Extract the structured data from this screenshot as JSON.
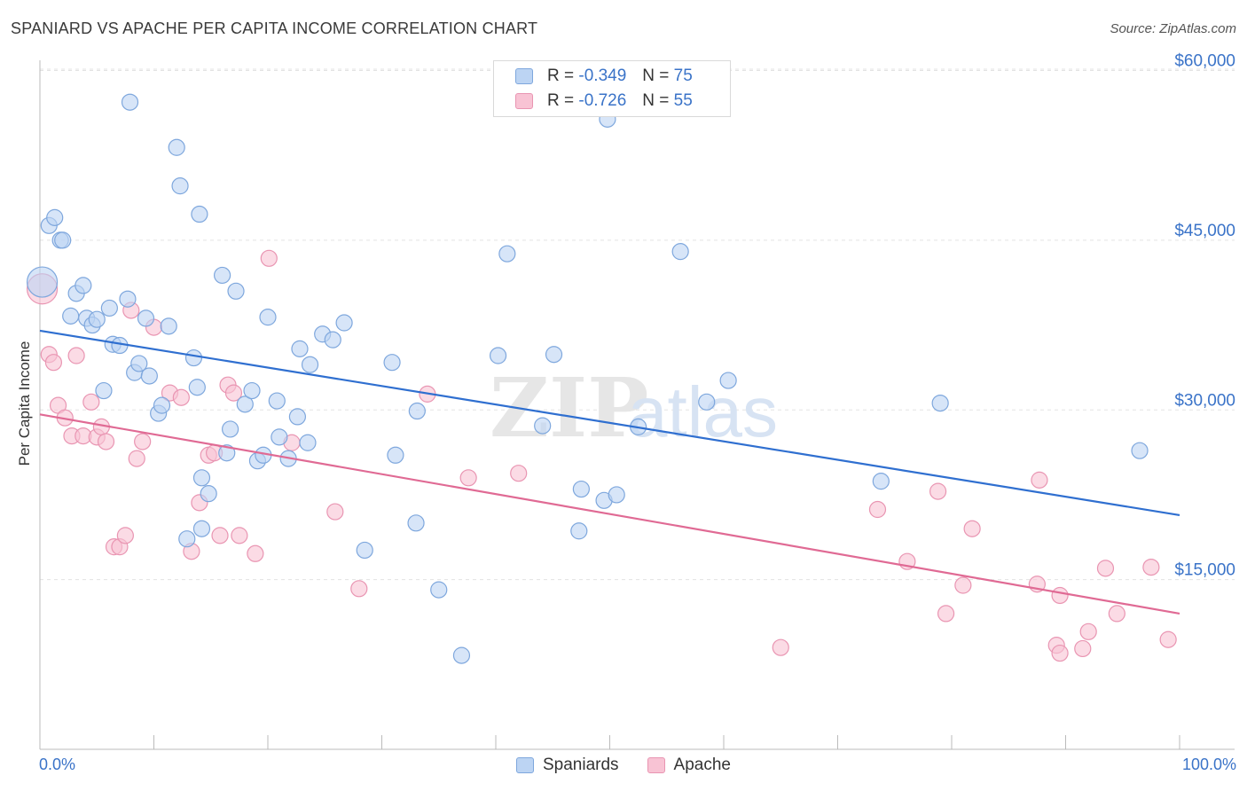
{
  "header": {
    "title": "SPANIARD VS APACHE PER CAPITA INCOME CORRELATION CHART",
    "source": "Source: ZipAtlas.com"
  },
  "watermark": {
    "zip": "ZIP",
    "atlas": "atlas"
  },
  "legend_top": [
    {
      "r_label": "R =",
      "r_value": "-0.349",
      "n_label": "N =",
      "n_value": "75"
    },
    {
      "r_label": "R =",
      "r_value": "-0.726",
      "n_label": "N =",
      "n_value": "55"
    }
  ],
  "colors": {
    "spaniards_fill": "#bcd4f3",
    "spaniards_stroke": "#7ea7dd",
    "spaniards_line": "#2f6fd0",
    "apache_fill": "#f8c3d4",
    "apache_stroke": "#e995b2",
    "apache_line": "#e06a94",
    "axis_label": "#3a73c8",
    "grid": "#e3e3e3"
  },
  "chart_data": {
    "type": "scatter",
    "title": "SPANIARD VS APACHE PER CAPITA INCOME CORRELATION CHART",
    "xlabel": "",
    "ylabel": "Per Capita Income",
    "xlim": [
      0,
      100
    ],
    "ylim": [
      0,
      63000
    ],
    "x_tick_labels": [
      "0.0%",
      "100.0%"
    ],
    "y_ticks": [
      15000,
      30000,
      45000,
      60000
    ],
    "y_tick_labels": [
      "$15,000",
      "$30,000",
      "$45,000",
      "$60,000"
    ],
    "grid": true,
    "legend_position": "bottom-center",
    "series": [
      {
        "name": "Spaniards",
        "r": -0.349,
        "n": 75,
        "trend": {
          "x": [
            0,
            100
          ],
          "y": [
            37000,
            20700
          ]
        },
        "points": [
          [
            0.2,
            41300
          ],
          [
            0.8,
            46300
          ],
          [
            1.3,
            47000
          ],
          [
            1.8,
            45000
          ],
          [
            2.0,
            45000
          ],
          [
            3.2,
            40300
          ],
          [
            2.7,
            38300
          ],
          [
            3.8,
            41000
          ],
          [
            4.1,
            38100
          ],
          [
            4.6,
            37500
          ],
          [
            5.0,
            38000
          ],
          [
            6.1,
            39000
          ],
          [
            6.4,
            35800
          ],
          [
            7.0,
            35700
          ],
          [
            5.6,
            31700
          ],
          [
            7.7,
            39800
          ],
          [
            8.3,
            33300
          ],
          [
            8.7,
            34100
          ],
          [
            9.3,
            38100
          ],
          [
            9.6,
            33000
          ],
          [
            10.4,
            29700
          ],
          [
            10.7,
            30400
          ],
          [
            11.3,
            37400
          ],
          [
            12.0,
            53200
          ],
          [
            12.3,
            49800
          ],
          [
            14.0,
            47300
          ],
          [
            13.5,
            34600
          ],
          [
            13.8,
            32000
          ],
          [
            14.8,
            22600
          ],
          [
            14.2,
            24000
          ],
          [
            16.0,
            41900
          ],
          [
            16.4,
            26200
          ],
          [
            16.7,
            28300
          ],
          [
            17.2,
            40500
          ],
          [
            18.0,
            30500
          ],
          [
            18.6,
            31700
          ],
          [
            19.1,
            25500
          ],
          [
            19.6,
            26000
          ],
          [
            20.0,
            38200
          ],
          [
            20.8,
            30800
          ],
          [
            21.0,
            27600
          ],
          [
            21.8,
            25700
          ],
          [
            22.6,
            29400
          ],
          [
            22.8,
            35400
          ],
          [
            23.5,
            27100
          ],
          [
            23.7,
            34000
          ],
          [
            24.8,
            36700
          ],
          [
            25.7,
            36200
          ],
          [
            26.7,
            37700
          ],
          [
            7.9,
            57200
          ],
          [
            14.2,
            19500
          ],
          [
            12.9,
            18600
          ],
          [
            28.5,
            17600
          ],
          [
            30.9,
            34200
          ],
          [
            31.2,
            26000
          ],
          [
            33.0,
            20000
          ],
          [
            33.1,
            29900
          ],
          [
            35.0,
            14100
          ],
          [
            37.0,
            8300
          ],
          [
            40.2,
            34800
          ],
          [
            41.0,
            43800
          ],
          [
            44.1,
            28600
          ],
          [
            45.1,
            34900
          ],
          [
            47.3,
            19300
          ],
          [
            47.5,
            23000
          ],
          [
            49.5,
            22000
          ],
          [
            50.6,
            22500
          ],
          [
            52.5,
            28500
          ],
          [
            49.8,
            55700
          ],
          [
            56.2,
            44000
          ],
          [
            58.5,
            30700
          ],
          [
            60.4,
            32600
          ],
          [
            73.8,
            23700
          ],
          [
            79.0,
            30600
          ],
          [
            96.5,
            26400
          ]
        ]
      },
      {
        "name": "Apache",
        "r": -0.726,
        "n": 55,
        "trend": {
          "x": [
            0,
            100
          ],
          "y": [
            29600,
            12000
          ]
        },
        "points": [
          [
            0.2,
            40700
          ],
          [
            0.8,
            34900
          ],
          [
            1.2,
            34200
          ],
          [
            1.6,
            30400
          ],
          [
            2.2,
            29300
          ],
          [
            2.8,
            27700
          ],
          [
            3.2,
            34800
          ],
          [
            3.8,
            27700
          ],
          [
            4.5,
            30700
          ],
          [
            5.0,
            27600
          ],
          [
            5.4,
            28500
          ],
          [
            5.8,
            27200
          ],
          [
            6.5,
            17900
          ],
          [
            7.0,
            17900
          ],
          [
            7.5,
            18900
          ],
          [
            8.0,
            38800
          ],
          [
            8.5,
            25700
          ],
          [
            9.0,
            27200
          ],
          [
            10.0,
            37300
          ],
          [
            11.4,
            31500
          ],
          [
            12.4,
            31100
          ],
          [
            13.3,
            17500
          ],
          [
            14.0,
            21800
          ],
          [
            14.8,
            26000
          ],
          [
            15.3,
            26200
          ],
          [
            15.8,
            18900
          ],
          [
            16.5,
            32200
          ],
          [
            17.0,
            31500
          ],
          [
            17.5,
            18900
          ],
          [
            18.9,
            17300
          ],
          [
            20.1,
            43400
          ],
          [
            22.1,
            27100
          ],
          [
            25.9,
            21000
          ],
          [
            28.0,
            14200
          ],
          [
            34.0,
            31400
          ],
          [
            37.6,
            24000
          ],
          [
            42.0,
            24400
          ],
          [
            65.0,
            9000
          ],
          [
            73.5,
            21200
          ],
          [
            76.1,
            16600
          ],
          [
            78.8,
            22800
          ],
          [
            79.5,
            12000
          ],
          [
            81.0,
            14500
          ],
          [
            81.8,
            19500
          ],
          [
            87.5,
            14600
          ],
          [
            87.7,
            23800
          ],
          [
            89.5,
            13600
          ],
          [
            89.2,
            9200
          ],
          [
            89.5,
            8500
          ],
          [
            91.5,
            8900
          ],
          [
            92.0,
            10400
          ],
          [
            93.5,
            16000
          ],
          [
            94.5,
            12000
          ],
          [
            97.5,
            16100
          ],
          [
            99.0,
            9700
          ]
        ]
      }
    ]
  },
  "bottom_legend": {
    "spaniards": "Spaniards",
    "apache": "Apache"
  }
}
